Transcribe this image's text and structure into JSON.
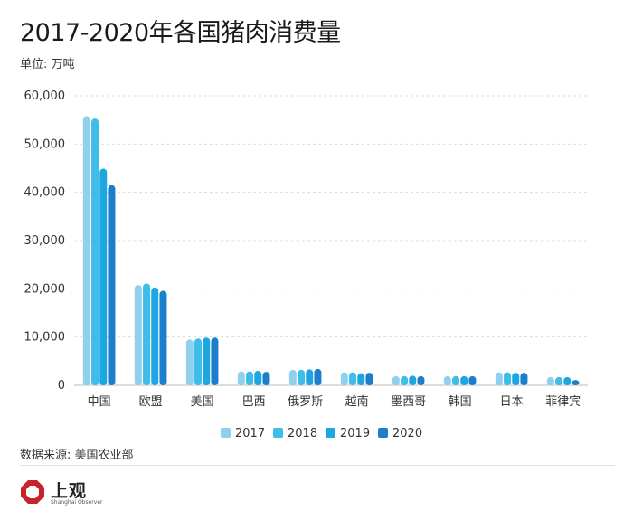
{
  "header": {
    "title": "2017-2020年各国猪肉消费量",
    "unit_label": "单位: 万吨"
  },
  "footer": {
    "source": "数据来源: 美国农业部",
    "logo_text": "上观",
    "logo_subtext": "Shanghai Observer"
  },
  "colors": {
    "series": [
      "#8fd0ee",
      "#3fbde9",
      "#1ea6e0",
      "#1b7fcb"
    ],
    "grid": "#dddddd",
    "axis_text": "#333333",
    "logo_red": "#c8232c"
  },
  "chart_data": {
    "type": "bar",
    "title": "2017-2020年各国猪肉消费量",
    "xlabel": "",
    "ylabel": "单位: 万吨",
    "ylim": [
      0,
      60000
    ],
    "yticks": [
      0,
      10000,
      20000,
      30000,
      40000,
      50000,
      60000
    ],
    "ytick_labels": [
      "0",
      "10,000",
      "20,000",
      "30,000",
      "40,000",
      "50,000",
      "60,000"
    ],
    "grid": true,
    "legend_position": "bottom",
    "categories": [
      "中国",
      "欧盟",
      "美国",
      "巴西",
      "俄罗斯",
      "越南",
      "墨西哥",
      "韩国",
      "日本",
      "菲律宾"
    ],
    "series": [
      {
        "name": "2017",
        "values": [
          55800,
          20800,
          9500,
          2900,
          3200,
          2700,
          1900,
          1900,
          2700,
          1700
        ]
      },
      {
        "name": "2018",
        "values": [
          55300,
          21100,
          9700,
          2900,
          3200,
          2700,
          1900,
          1900,
          2700,
          1700
        ]
      },
      {
        "name": "2019",
        "values": [
          44900,
          20300,
          9900,
          3000,
          3300,
          2500,
          2000,
          1900,
          2600,
          1700
        ]
      },
      {
        "name": "2020",
        "values": [
          41500,
          19600,
          9900,
          2800,
          3400,
          2600,
          1900,
          1900,
          2600,
          1100
        ]
      }
    ]
  }
}
